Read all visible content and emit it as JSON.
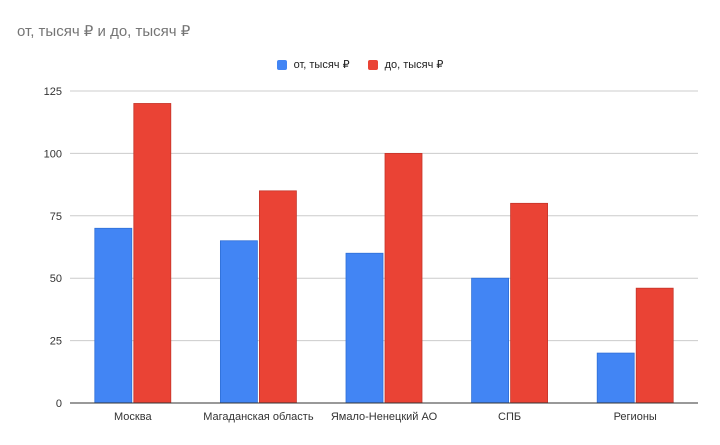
{
  "chart_data": {
    "type": "bar",
    "title": "от, тысяч ₽ и до, тысяч ₽",
    "categories": [
      "Москва",
      "Магаданская область",
      "Ямало-Ненецкий АО",
      "СПБ",
      "Регионы"
    ],
    "series": [
      {
        "name": "от, тысяч ₽",
        "color": "#4285f4",
        "values": [
          70,
          65,
          60,
          50,
          20
        ]
      },
      {
        "name": "до, тысяч ₽",
        "color": "#ea4335",
        "values": [
          120,
          85,
          100,
          80,
          46
        ]
      }
    ],
    "ylim": [
      0,
      125
    ],
    "yticks": [
      0,
      25,
      50,
      75,
      100,
      125
    ],
    "legend_position": "top-center",
    "grid": true
  }
}
